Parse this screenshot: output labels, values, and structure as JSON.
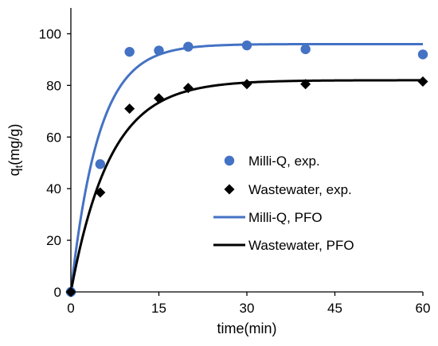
{
  "chart_data": {
    "type": "scatter",
    "xlabel": "time(min)",
    "ylabel_main": "q",
    "ylabel_sub": "t",
    "ylabel_rest": "(mg/g)",
    "xlim": [
      0,
      60
    ],
    "ylim": [
      0,
      110
    ],
    "xticks": [
      0,
      15,
      30,
      45,
      60
    ],
    "yticks": [
      0,
      20,
      40,
      60,
      80,
      100
    ],
    "grid": false,
    "legend_position": "center-right",
    "series": [
      {
        "name": "Milli-Q, exp.",
        "kind": "markers",
        "marker": "circle",
        "color": "#4472C4",
        "x": [
          0,
          5,
          10,
          15,
          20,
          30,
          40,
          60
        ],
        "y": [
          0,
          49.5,
          93,
          93.5,
          95,
          95.5,
          94,
          92
        ]
      },
      {
        "name": "Wastewater, exp.",
        "kind": "markers",
        "marker": "diamond",
        "color": "#000000",
        "x": [
          0,
          5,
          10,
          15,
          20,
          30,
          40,
          60
        ],
        "y": [
          0,
          38.5,
          71,
          75,
          79,
          80.5,
          80.5,
          81.5
        ]
      },
      {
        "name": "Milli-Q, PFO",
        "kind": "line",
        "color": "#4472C4",
        "qe": 96,
        "k1": 0.21
      },
      {
        "name": "Wastewater, PFO",
        "kind": "line",
        "color": "#000000",
        "qe": 82,
        "k1": 0.15
      }
    ]
  }
}
